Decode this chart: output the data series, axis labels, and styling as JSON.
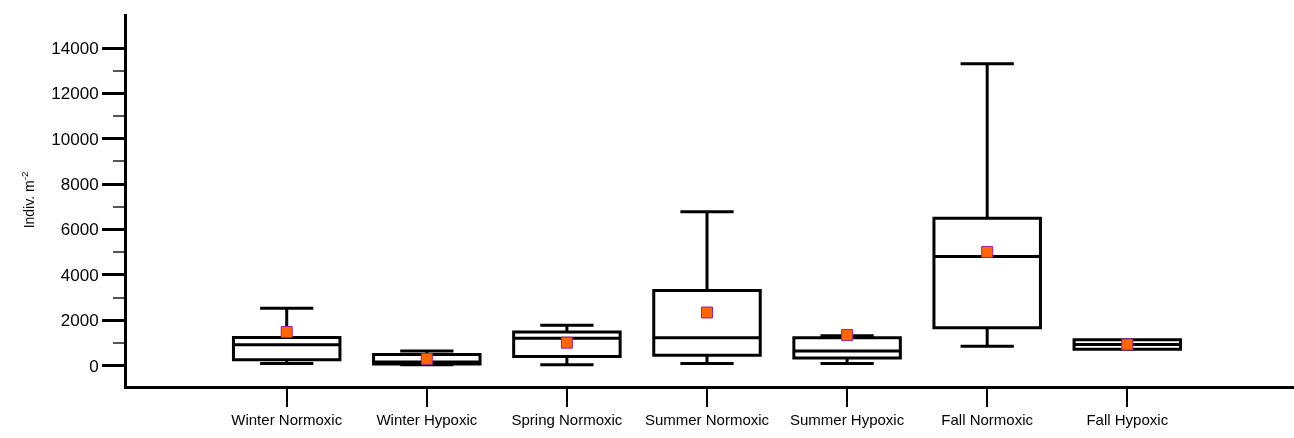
{
  "chart_data": {
    "type": "box",
    "ylabel": "Indiv. m$^{-2}$",
    "categories": [
      "Winter Normoxic",
      "Winter Hypoxic",
      "Spring Normoxic",
      "Summer Normoxic",
      "Summer Hypoxic",
      "Fall Normoxic",
      "Fall Hypoxic"
    ],
    "series": [
      {
        "color": "#000000",
        "boxes": [
          {
            "low": 90,
            "q1": 260,
            "median": 920,
            "q3": 1240,
            "high": 2530
          },
          {
            "low": 40,
            "q1": 70,
            "median": 160,
            "q3": 490,
            "high": 640
          },
          {
            "low": 40,
            "q1": 400,
            "median": 1210,
            "q3": 1480,
            "high": 1780
          },
          {
            "low": 90,
            "q1": 460,
            "median": 1230,
            "q3": 3310,
            "high": 6780
          },
          {
            "low": 90,
            "q1": 330,
            "median": 640,
            "q3": 1230,
            "high": 1320
          },
          {
            "low": 850,
            "q1": 1670,
            "median": 4810,
            "q3": 6500,
            "high": 13310
          },
          {
            "low": 720,
            "q1": 720,
            "median": 930,
            "q3": 1140,
            "high": 1140
          }
        ]
      },
      {
        "type": "scatter",
        "color": "#ff6600",
        "x": [
          "Winter Normoxic",
          "Winter Hypoxic",
          "Spring Normoxic",
          "Summer Normoxic",
          "Summer Hypoxic",
          "Fall Normoxic",
          "Fall Hypoxic"
        ],
        "values": [
          1480,
          290,
          1010,
          2340,
          1350,
          5010,
          930
        ]
      }
    ],
    "marker": "square",
    "ylim": [
      -900,
      15500
    ],
    "yticks": [
      0,
      {
        "value": 1000,
        "label": null
      },
      2000,
      {
        "value": 3000,
        "label": null
      },
      4000,
      {
        "value": 5000,
        "label": null
      },
      6000,
      {
        "value": 7000,
        "label": null
      },
      8000,
      {
        "value": 9000,
        "label": null
      },
      10000,
      {
        "value": 11000,
        "label": null
      },
      12000,
      {
        "value": 13000,
        "label": null
      },
      14000
    ],
    "tick_labels": true
  }
}
